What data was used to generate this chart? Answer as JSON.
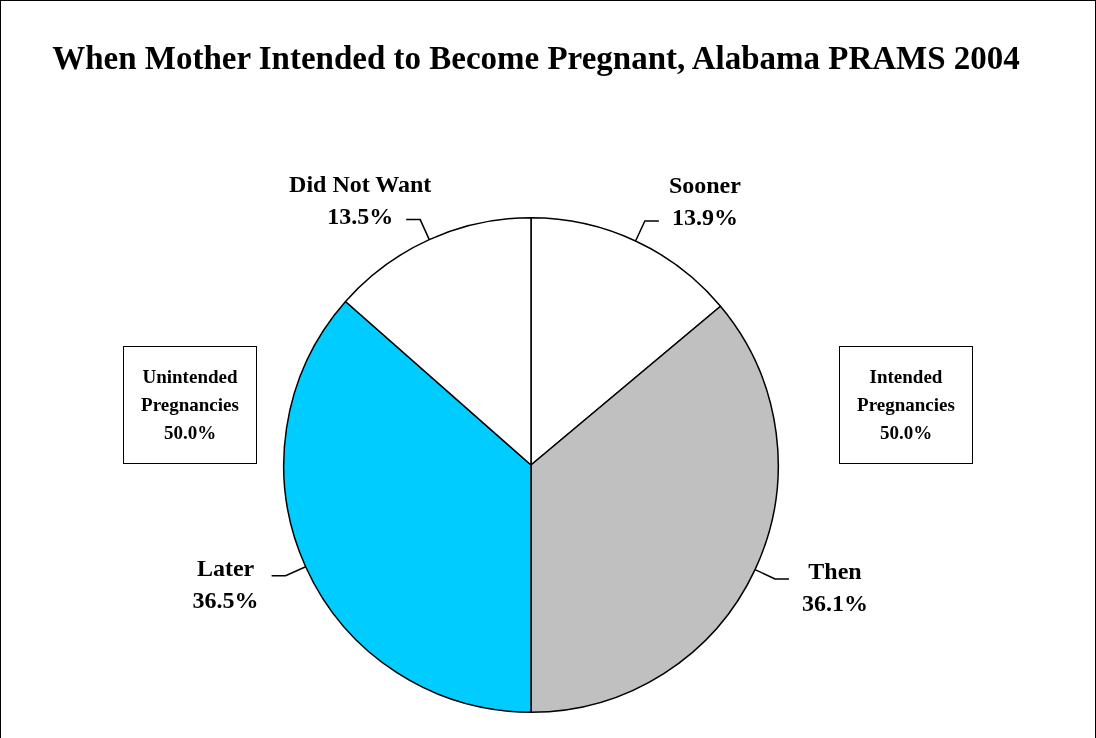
{
  "chart_data": {
    "type": "pie",
    "title": "When Mother Intended to Become Pregnant, Alabama PRAMS 2004",
    "categories": [
      "Sooner",
      "Then",
      "Later",
      "Did Not Want"
    ],
    "values": [
      13.9,
      36.1,
      36.5,
      13.5
    ],
    "colors": [
      "#ffffff",
      "#c0c0c0",
      "#00ccff",
      "#ffffff"
    ],
    "value_labels": [
      "13.9%",
      "36.1%",
      "36.5%",
      "13.5%"
    ],
    "annotations": [
      "Unintended Pregnancies 50.0%",
      "Intended Pregnancies 50.0%"
    ],
    "legend": false
  }
}
